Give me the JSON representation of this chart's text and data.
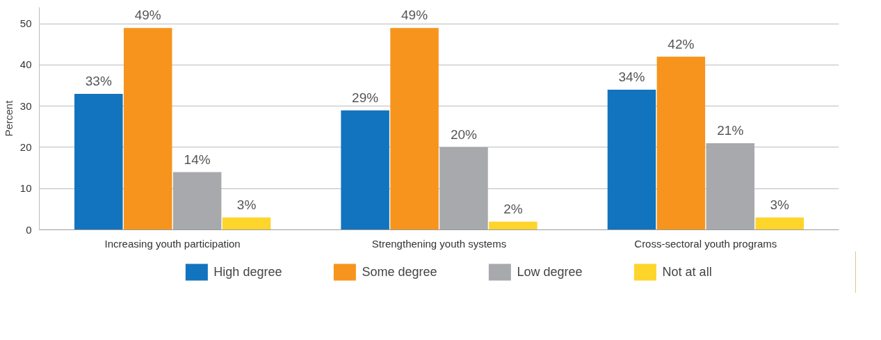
{
  "chart_data": {
    "type": "bar",
    "ylabel": "Percent",
    "categories": [
      "Increasing youth participation",
      "Strengthening youth systems",
      "Cross-sectoral youth programs"
    ],
    "series": [
      {
        "name": "High degree",
        "color": "#1273be",
        "values": [
          33,
          29,
          34
        ],
        "value_labels": [
          "33%",
          "29%",
          "34%"
        ]
      },
      {
        "name": "Some degree",
        "color": "#f7941d",
        "values": [
          49,
          49,
          42
        ],
        "value_labels": [
          "49%",
          "49%",
          "42%"
        ]
      },
      {
        "name": "Low degree",
        "color": "#a7a9ac",
        "values": [
          14,
          20,
          21
        ],
        "value_labels": [
          "14%",
          "20%",
          "21%"
        ]
      },
      {
        "name": "Not at all",
        "color": "#fdd52b",
        "values": [
          3,
          2,
          3
        ],
        "value_labels": [
          "3%",
          "2%",
          "3%"
        ]
      }
    ],
    "ylim": [
      0,
      54
    ],
    "yticks": [
      0,
      10,
      20,
      30,
      40,
      50
    ],
    "grid": "y",
    "legend": "bottom"
  }
}
